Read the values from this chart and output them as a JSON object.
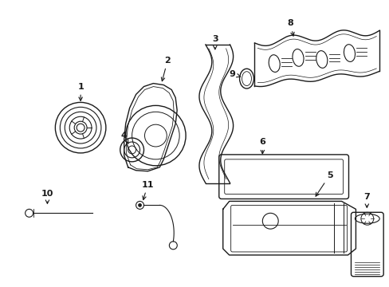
{
  "bg_color": "#ffffff",
  "line_color": "#1a1a1a",
  "line_width": 1.0,
  "fig_width": 4.89,
  "fig_height": 3.6,
  "dpi": 100
}
